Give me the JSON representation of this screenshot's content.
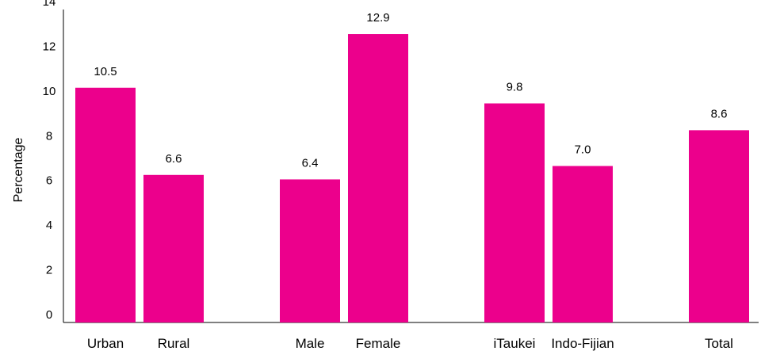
{
  "chart_data": {
    "type": "bar",
    "title": "",
    "xlabel": "",
    "ylabel": "Percentage",
    "ylim": [
      0,
      14
    ],
    "yticks": [
      0,
      2,
      4,
      6,
      8,
      10,
      12,
      14
    ],
    "grid": false,
    "legend": "none",
    "bar_color": "#EC008C",
    "categories": [
      "Urban",
      "Rural",
      "Male",
      "Female",
      "iTaukei",
      "Indo-Fijian",
      "Total"
    ],
    "values": [
      10.5,
      6.6,
      6.4,
      12.9,
      9.8,
      7.0,
      8.6
    ],
    "data_labels": [
      "10.5",
      "6.6",
      "6.4",
      "12.9",
      "9.8",
      "7.0",
      "8.6"
    ]
  }
}
